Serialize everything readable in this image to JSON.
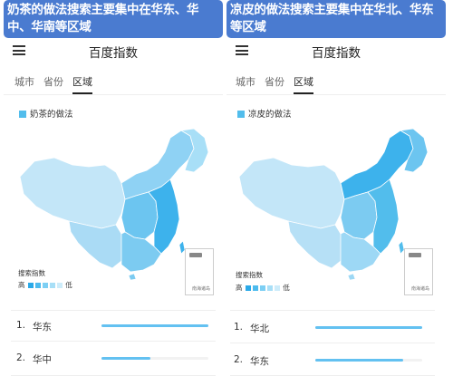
{
  "panels": [
    {
      "banner": "奶茶的做法搜索主要集中在华东、华中、华南等区域",
      "app_title": "百度指数",
      "tabs": [
        "城市",
        "省份",
        "区域"
      ],
      "active_tab": "区域",
      "legend_label": "奶茶的做法",
      "scale": {
        "title": "搜索指数",
        "high": "高",
        "low": "低"
      },
      "sea_inset_text": "南海诸岛",
      "ranking": [
        {
          "rank": "1.",
          "name": "华东",
          "level": 1.0
        },
        {
          "rank": "2.",
          "name": "华中",
          "level": 0.46
        }
      ]
    },
    {
      "banner": "凉皮的做法搜索主要集中在华北、华东等区域",
      "app_title": "百度指数",
      "tabs": [
        "城市",
        "省份",
        "区域"
      ],
      "active_tab": "区域",
      "legend_label": "凉皮的做法",
      "scale": {
        "title": "搜索指数",
        "high": "高",
        "low": "低"
      },
      "sea_inset_text": "南海诸岛",
      "ranking": [
        {
          "rank": "1.",
          "name": "华北",
          "level": 1.0
        },
        {
          "rank": "2.",
          "name": "华东",
          "level": 0.82
        }
      ]
    }
  ],
  "colors": {
    "banner": "#4a7bd0",
    "bar": "#63c1f1",
    "scale": [
      "#2aa9e8",
      "#4dbbee",
      "#7ccff4",
      "#a8dff7",
      "#cdecfa"
    ],
    "map_dark": "#3db2ec",
    "map_mid": "#7ccbf1",
    "map_light": "#c3e6f8"
  }
}
